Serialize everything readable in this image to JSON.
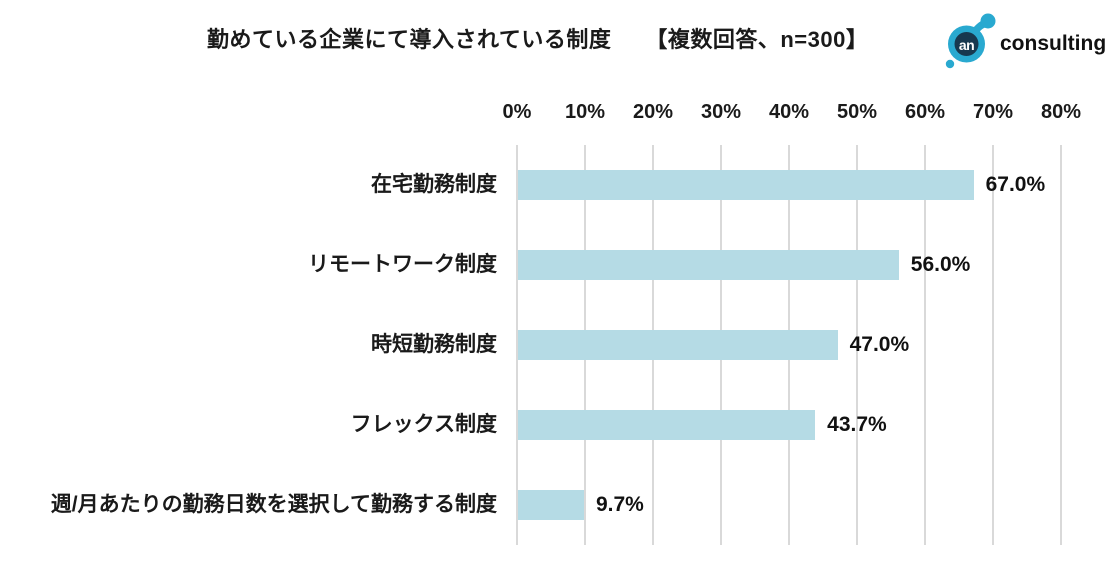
{
  "header": {
    "title": "勤めている企業にて導入されている制度",
    "note": "【複数回答、n=300】"
  },
  "logo": {
    "mark_text": "an",
    "wordmark": "consulting",
    "blue": "#29A9D0",
    "navy": "#17384F"
  },
  "chart_data": {
    "type": "bar",
    "orientation": "horizontal",
    "title": "勤めている企業にて導入されている制度",
    "subtitle": "【複数回答、n=300】",
    "categories": [
      "在宅勤務制度",
      "リモートワーク制度",
      "時短勤務制度",
      "フレックス制度",
      "週/月あたりの勤務日数を選択して勤務する制度"
    ],
    "values": [
      67.0,
      56.0,
      47.0,
      43.7,
      9.7
    ],
    "value_labels": [
      "67.0%",
      "56.0%",
      "47.0%",
      "43.7%",
      "9.7%"
    ],
    "x_ticks": [
      "0%",
      "10%",
      "20%",
      "30%",
      "40%",
      "50%",
      "60%",
      "70%",
      "80%"
    ],
    "xlim": [
      0,
      80
    ],
    "xlabel": "",
    "ylabel": "",
    "grid": true,
    "legend": false,
    "bar_color": "#B5DBE5",
    "grid_color": "#D9D9D9",
    "text_color": "#1a1a1a"
  }
}
